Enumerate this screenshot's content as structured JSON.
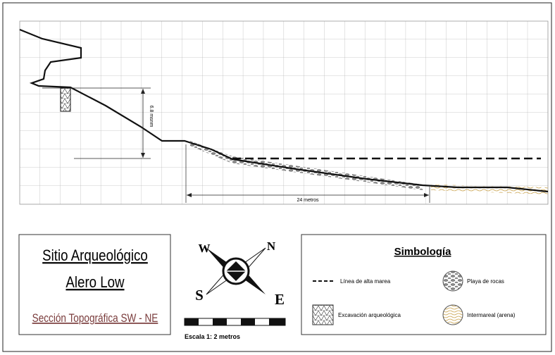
{
  "section": {
    "height_label": "6.8 msnm",
    "distance_label": "24 metros"
  },
  "title_box": {
    "line1": "Sitio Arqueológico",
    "line2": "Alero Low",
    "subtitle": "Sección Topográfica SW - NE"
  },
  "compass": {
    "w": "W",
    "n": "N",
    "s": "S",
    "e": "E"
  },
  "scale": "Escala 1: 2 metros",
  "legend": {
    "title": "Simbología",
    "items": [
      {
        "label": "Línea de alta marea"
      },
      {
        "label": "Playa de rocas"
      },
      {
        "label": "Excavación arqueológica"
      },
      {
        "label": "Intermareal (arena)"
      }
    ]
  }
}
